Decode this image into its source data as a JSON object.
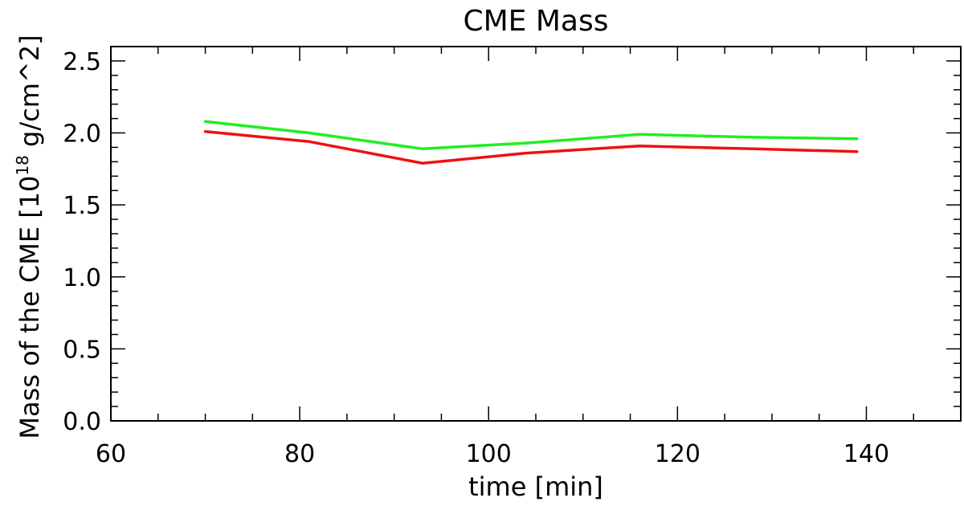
{
  "chart_data": {
    "type": "line",
    "title": "CME Mass",
    "xlabel": "time [min]",
    "ylabel": {
      "prefix": "Mass of the CME [10",
      "superscript": "18",
      "suffix": " g/cm^2]"
    },
    "xlim": [
      60,
      150
    ],
    "ylim": [
      0.0,
      2.6
    ],
    "x_ticks": [
      60,
      80,
      100,
      120,
      140
    ],
    "x_tick_labels": [
      "60",
      "80",
      "100",
      "120",
      "140"
    ],
    "x_minor_step": 5,
    "y_ticks": [
      0.0,
      0.5,
      1.0,
      1.5,
      2.0,
      2.5
    ],
    "y_tick_labels": [
      "0.0",
      "0.5",
      "1.0",
      "1.5",
      "2.0",
      "2.5"
    ],
    "y_minor_step": 0.1,
    "grid": false,
    "series": [
      {
        "color": "#22ee22",
        "x": [
          70,
          81,
          93,
          104,
          116,
          128,
          139
        ],
        "y": [
          2.08,
          2.0,
          1.89,
          1.93,
          1.99,
          1.97,
          1.96
        ]
      },
      {
        "color": "#ee1111",
        "x": [
          70,
          81,
          93,
          104,
          116,
          128,
          139
        ],
        "y": [
          2.01,
          1.94,
          1.79,
          1.86,
          1.91,
          1.89,
          1.87
        ]
      }
    ]
  }
}
